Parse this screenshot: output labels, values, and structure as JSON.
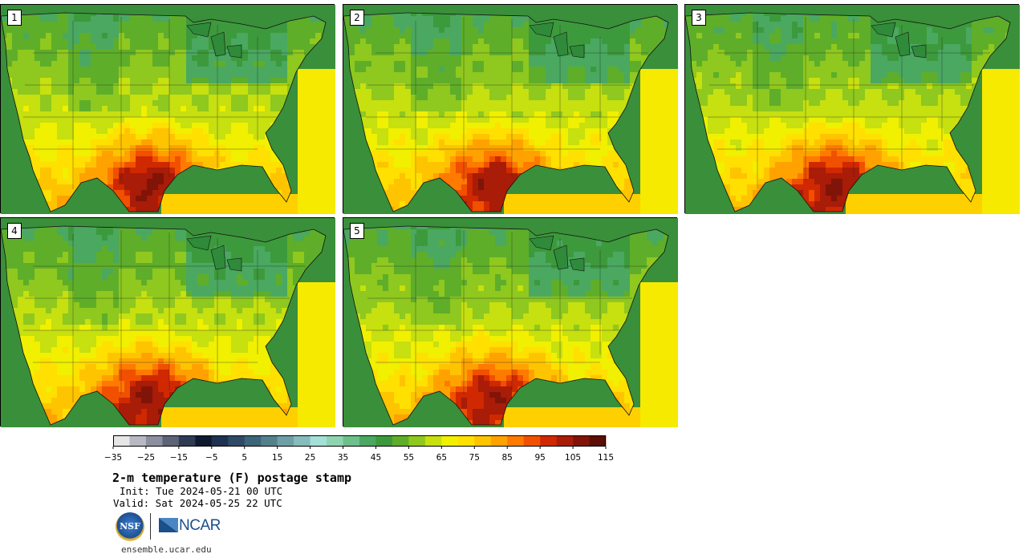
{
  "panels": [
    {
      "label": "1",
      "heat": 1.0
    },
    {
      "label": "2",
      "heat": 0.92
    },
    {
      "label": "3",
      "heat": 0.96
    },
    {
      "label": "4",
      "heat": 0.98
    },
    {
      "label": "5",
      "heat": 0.9
    }
  ],
  "colorbar": {
    "colors": [
      "#e6e6e6",
      "#b8b8c2",
      "#8c8fa0",
      "#5d6478",
      "#2f3a55",
      "#0f1a30",
      "#1f3150",
      "#2e4a66",
      "#3d6478",
      "#54808c",
      "#6e9ea6",
      "#86bcbc",
      "#a3e0d6",
      "#8fd4b0",
      "#6cc08a",
      "#4aa860",
      "#3d9a3c",
      "#5fae2a",
      "#8fc81e",
      "#c6e010",
      "#f0f000",
      "#ffe000",
      "#ffc400",
      "#ffa200",
      "#ff7a00",
      "#f05000",
      "#d02800",
      "#a81c08",
      "#801408",
      "#5a0e06"
    ],
    "tick_labels": [
      "−35",
      "−25",
      "−15",
      "−5",
      "5",
      "15",
      "25",
      "35",
      "45",
      "55",
      "65",
      "75",
      "85",
      "95",
      "105",
      "115"
    ]
  },
  "title": "2-m temperature (F) postage stamp",
  "init_text": "Init: Tue 2024-05-21 00 UTC",
  "valid_text": "Valid: Sat 2024-05-25 22 UTC",
  "logos": {
    "nsf": "NSF",
    "ncar": "NCAR"
  },
  "url": "ensemble.ucar.edu"
}
